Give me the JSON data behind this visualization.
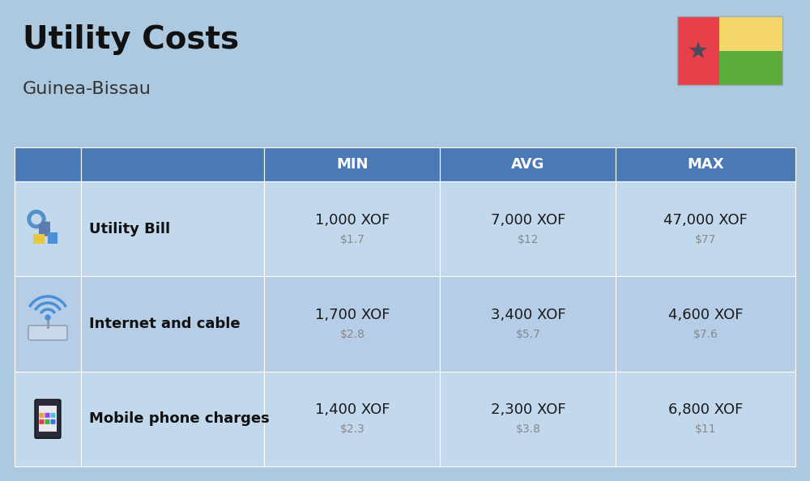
{
  "title": "Utility Costs",
  "subtitle": "Guinea-Bissau",
  "background_color": "#adc9e0",
  "header_color": "#4a7ab5",
  "header_text_color": "#ffffff",
  "row_color_odd": "#c2d8ed",
  "row_color_even": "#b5cde6",
  "col_headers": [
    "MIN",
    "AVG",
    "MAX"
  ],
  "rows": [
    {
      "label": "Utility Bill",
      "min_xof": "1,000 XOF",
      "min_usd": "$1.7",
      "avg_xof": "7,000 XOF",
      "avg_usd": "$12",
      "max_xof": "47,000 XOF",
      "max_usd": "$77"
    },
    {
      "label": "Internet and cable",
      "min_xof": "1,700 XOF",
      "min_usd": "$2.8",
      "avg_xof": "3,400 XOF",
      "avg_usd": "$5.7",
      "max_xof": "4,600 XOF",
      "max_usd": "$7.6"
    },
    {
      "label": "Mobile phone charges",
      "min_xof": "1,400 XOF",
      "min_usd": "$2.3",
      "avg_xof": "2,300 XOF",
      "avg_usd": "$3.8",
      "max_xof": "6,800 XOF",
      "max_usd": "$11"
    }
  ],
  "flag": {
    "red": "#e8404a",
    "yellow": "#f5d668",
    "green": "#5aab3a",
    "star": "#4a4a5a"
  },
  "title_color": "#111111",
  "subtitle_color": "#333333",
  "label_color": "#111111",
  "value_color": "#1a1a1a",
  "usd_color": "#888888",
  "icon_bg": "#c2d4e8"
}
